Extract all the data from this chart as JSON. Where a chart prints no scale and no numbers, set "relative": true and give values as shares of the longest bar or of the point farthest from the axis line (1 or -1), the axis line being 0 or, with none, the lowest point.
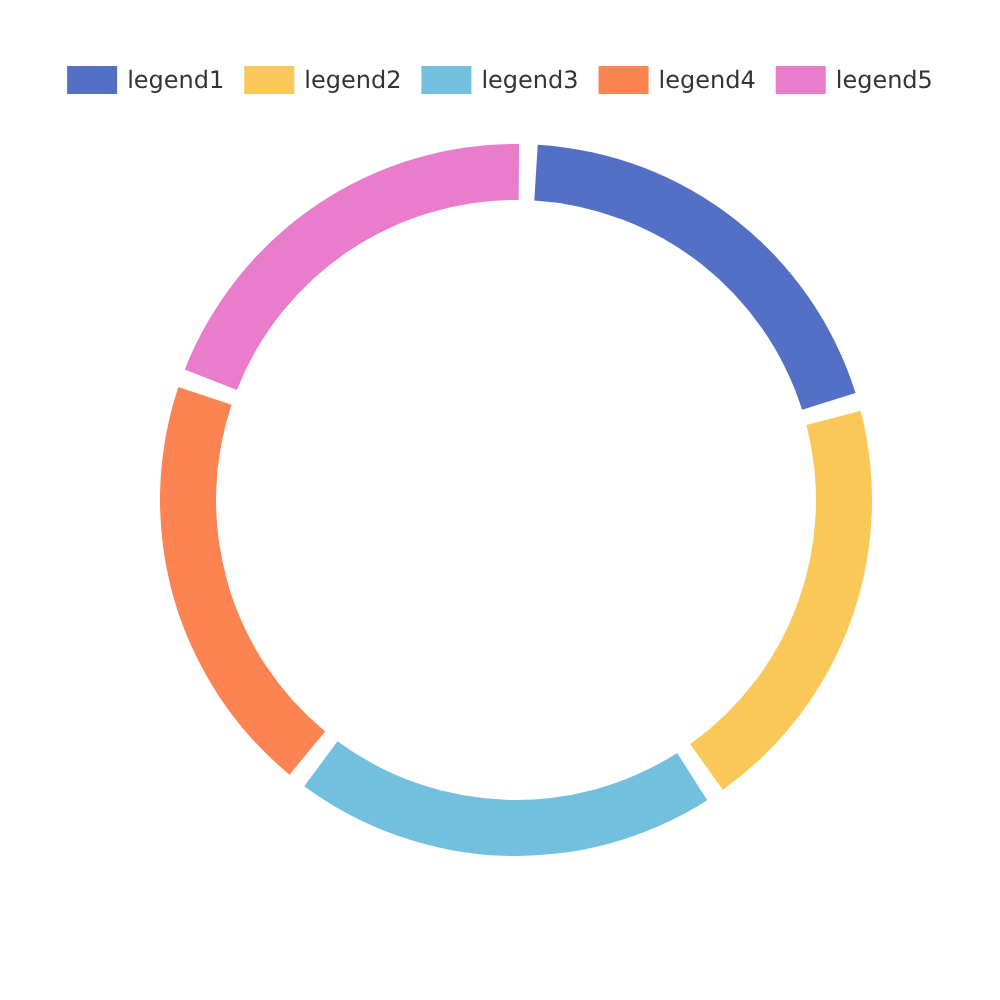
{
  "chart_data": {
    "type": "donut",
    "relative": true,
    "categories": [
      "legend1",
      "legend2",
      "legend3",
      "legend4",
      "legend5"
    ],
    "values": [
      20,
      20,
      20,
      20,
      20
    ],
    "colors": [
      "#5470c6",
      "#fac858",
      "#73c0de",
      "#fc8452",
      "#ea7ccc"
    ],
    "legend": "top"
  }
}
